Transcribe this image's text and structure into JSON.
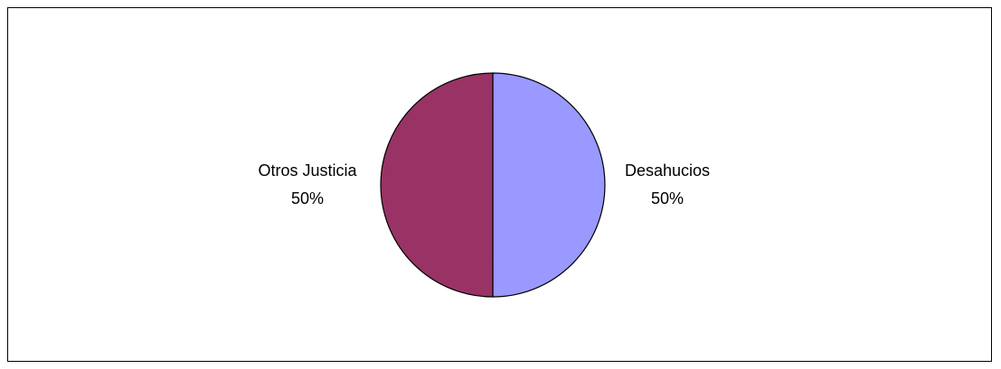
{
  "chart_data": {
    "type": "pie",
    "title": "",
    "slices": [
      {
        "label": "Desahucios",
        "value": 50,
        "percent_label": "50%",
        "color": "#9999FF"
      },
      {
        "label": "Otros Justicia",
        "value": 50,
        "percent_label": "50%",
        "color": "#993366"
      }
    ],
    "legend": "none"
  }
}
